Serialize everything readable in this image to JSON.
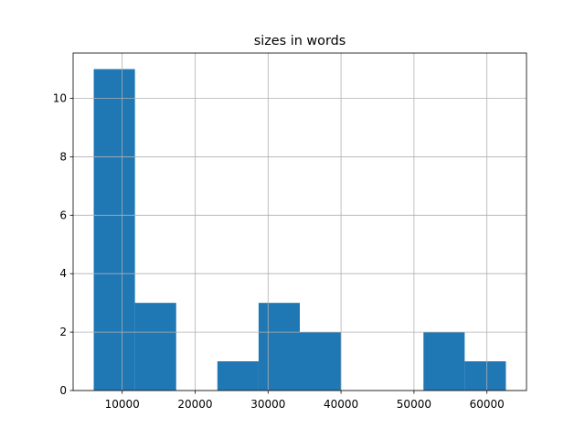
{
  "chart_data": {
    "type": "histogram",
    "title": "sizes in words",
    "bins": [
      6100,
      11750,
      17400,
      23050,
      28700,
      34350,
      40000,
      45650,
      51300,
      56950,
      62600
    ],
    "counts": [
      11,
      3,
      0,
      1,
      3,
      2,
      0,
      0,
      2,
      1
    ],
    "color": "#1f77b4",
    "xlim": [
      3275,
      65425
    ],
    "xticks": [
      10000,
      20000,
      30000,
      40000,
      50000,
      60000
    ],
    "ylim": [
      0,
      11.55
    ],
    "yticks": [
      0,
      2,
      4,
      6,
      8,
      10
    ],
    "grid": true
  }
}
